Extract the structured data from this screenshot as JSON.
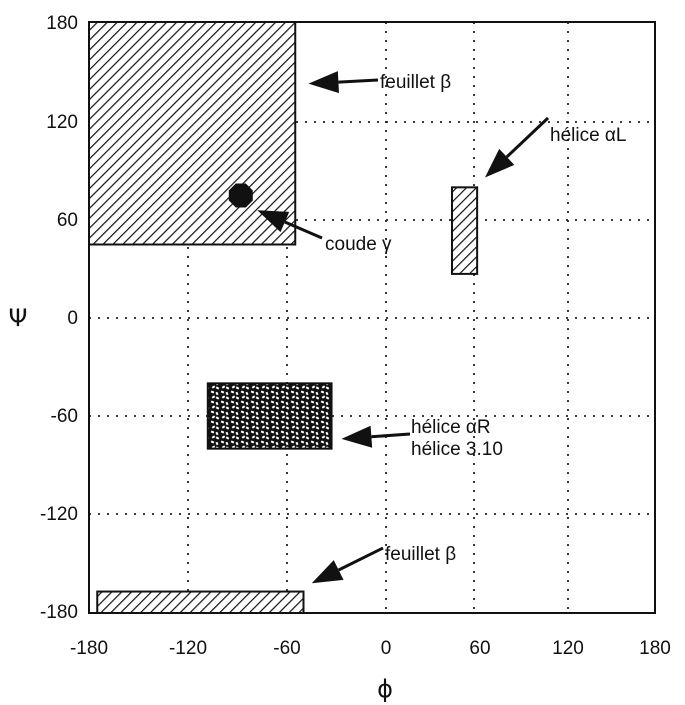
{
  "chart_data": {
    "type": "scatter",
    "title": "",
    "xlabel": "ϕ",
    "ylabel": "Ψ",
    "xlim": [
      -180,
      180
    ],
    "ylim": [
      -180,
      180
    ],
    "xticks": [
      "-180",
      "-120",
      "-60",
      "0",
      "60",
      "120",
      "180"
    ],
    "yticks": [
      "180",
      "120",
      "60",
      "0",
      "-60",
      "-120",
      "-180"
    ],
    "grid": true,
    "regions": [
      {
        "name": "feuillet β",
        "x": [
          -180,
          -55
        ],
        "y": [
          45,
          180
        ],
        "fill": "hatched"
      },
      {
        "name": "feuillet β",
        "x": [
          -175,
          -50
        ],
        "y": [
          -180,
          -167
        ],
        "fill": "hatched"
      },
      {
        "name": "hélice αL",
        "x": [
          45,
          62
        ],
        "y": [
          27,
          80
        ],
        "fill": "hatched"
      },
      {
        "name": "hélice αR / hélice 3.10",
        "x": [
          -108,
          -33
        ],
        "y": [
          -80,
          -40
        ],
        "fill": "speckled"
      }
    ],
    "points": [
      {
        "name": "coude γ",
        "x": -88,
        "y": 75
      }
    ],
    "annotations": [
      {
        "text": "feuillet β",
        "target": [
          -47,
          143
        ]
      },
      {
        "text": "hélice αL",
        "target": [
          67,
          86
        ]
      },
      {
        "text": "coude γ",
        "target": [
          -78,
          66
        ]
      },
      {
        "text": "hélice αR",
        "target": [
          -27,
          -74
        ]
      },
      {
        "text": "hélice 3.10",
        "target": [
          -27,
          -74
        ]
      },
      {
        "text": "feuillet β",
        "target": [
          -45,
          -162
        ]
      }
    ]
  }
}
